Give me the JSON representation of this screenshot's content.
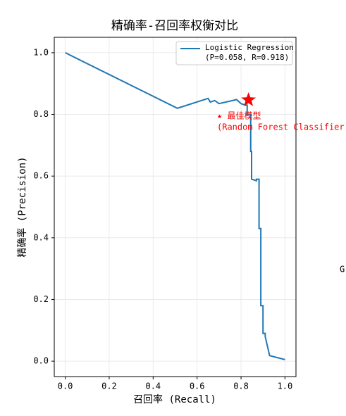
{
  "chart_data": {
    "type": "line",
    "title": "精确率-召回率权衡对比",
    "x_label": "召回率 (Recall)",
    "y_label": "精确率 (Precision)",
    "xlim": [
      -0.05,
      1.05
    ],
    "ylim": [
      -0.05,
      1.05
    ],
    "xticks": [
      {
        "value": 0,
        "label": "0.0"
      },
      {
        "value": 0.2,
        "label": "0.2"
      },
      {
        "value": 0.4,
        "label": "0.4"
      },
      {
        "value": 0.6,
        "label": "0.6"
      },
      {
        "value": 0.8,
        "label": "0.8"
      },
      {
        "value": 1,
        "label": "1.0"
      }
    ],
    "yticks": [
      {
        "value": 0,
        "label": "0.0"
      },
      {
        "value": 0.2,
        "label": "0.2"
      },
      {
        "value": 0.4,
        "label": "0.4"
      },
      {
        "value": 0.6,
        "label": "0.6"
      },
      {
        "value": 0.8,
        "label": "0.8"
      },
      {
        "value": 1,
        "label": "1.0"
      }
    ],
    "grid": true,
    "legend_position": "upper right",
    "series": [
      {
        "name": "Logistic Regression",
        "name_detail": "(P=0.058, R=0.918)",
        "color": "#1f77b4",
        "x": [
          0,
          0.51,
          0.65,
          0.66,
          0.68,
          0.7,
          0.78,
          0.8,
          0.82,
          0.828,
          0.828,
          0.844,
          0.844,
          0.848,
          0.848,
          0.87,
          0.87,
          0.882,
          0.882,
          0.89,
          0.89,
          0.9,
          0.9,
          0.91,
          0.91,
          0.93,
          1.0
        ],
        "values": [
          1.0,
          0.82,
          0.852,
          0.84,
          0.845,
          0.835,
          0.848,
          0.835,
          0.83,
          0.83,
          0.8,
          0.8,
          0.68,
          0.68,
          0.59,
          0.585,
          0.59,
          0.59,
          0.43,
          0.43,
          0.18,
          0.18,
          0.09,
          0.09,
          0.08,
          0.018,
          0.005
        ]
      }
    ],
    "best_point": {
      "x": 0.834,
      "y": 0.847,
      "color": "#ff0000",
      "lines": [
        "★ 最佳模型",
        "(Random Forest Classifier)"
      ]
    },
    "side_text": "Gr"
  }
}
